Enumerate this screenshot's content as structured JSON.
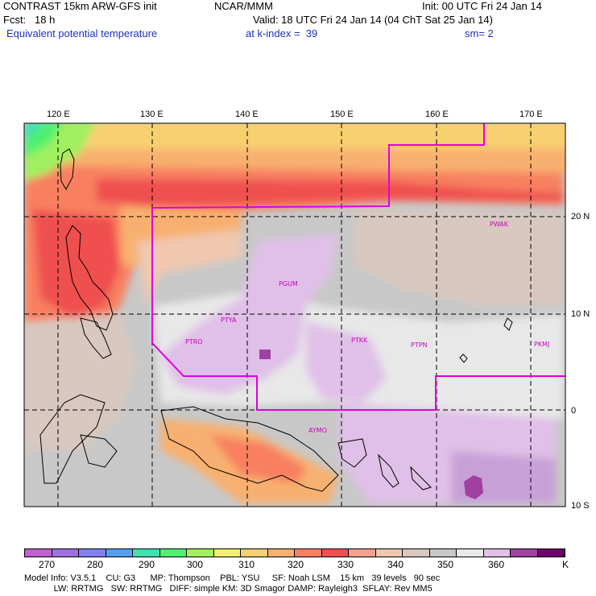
{
  "header": {
    "title_left": "CONTRAST 15km ARW-GFS init",
    "title_org": "NCAR/MMM",
    "init": "Init: 00 UTC Fri 24 Jan 14",
    "fcst": "Fcst:   18 h",
    "valid": "Valid: 18 UTC Fri 24 Jan 14 (04 ChT Sat 25 Jan 14)",
    "field": "Equivalent potential temperature",
    "level": "at k-index =  39",
    "smooth": "sm= 2"
  },
  "map": {
    "lon_labels": [
      "120 E",
      "130 E",
      "140 E",
      "150 E",
      "160 E",
      "170 E"
    ],
    "lat_labels": [
      "20 N",
      "10 N",
      "0",
      "10 S"
    ],
    "stations": [
      {
        "id": "PGUM"
      },
      {
        "id": "PTYA"
      },
      {
        "id": "PTRO"
      },
      {
        "id": "PTKK"
      },
      {
        "id": "PTPN"
      },
      {
        "id": "PWAK"
      },
      {
        "id": "PKMJ"
      },
      {
        "id": "AYMO"
      }
    ]
  },
  "colorbar": {
    "labels": [
      "270",
      "280",
      "290",
      "300",
      "310",
      "320",
      "330",
      "340",
      "350",
      "360"
    ],
    "unit": "K",
    "colors": [
      "#c060d0",
      "#a070e0",
      "#8080f0",
      "#50a0f0",
      "#40e0b0",
      "#50f070",
      "#a0f060",
      "#f0f070",
      "#f8d070",
      "#f8b070",
      "#f88060",
      "#f05050",
      "#f8a090",
      "#f0c8b0",
      "#d8c8c0",
      "#c8c8c8",
      "#e8e8e8",
      "#e0c0e8",
      "#a040a0",
      "#700070"
    ]
  },
  "footer": {
    "line1": "Model Info: V3.5.1    CU: G3      MP: Thompson    PBL: YSU     SF: Noah LSM    15 km   39 levels   90 sec",
    "line2": "            LW: RRTMG   SW: RRTMG   DIFF: simple KM: 3D Smagor DAMP: Rayleigh3  SFLAY: Rev MM5"
  }
}
